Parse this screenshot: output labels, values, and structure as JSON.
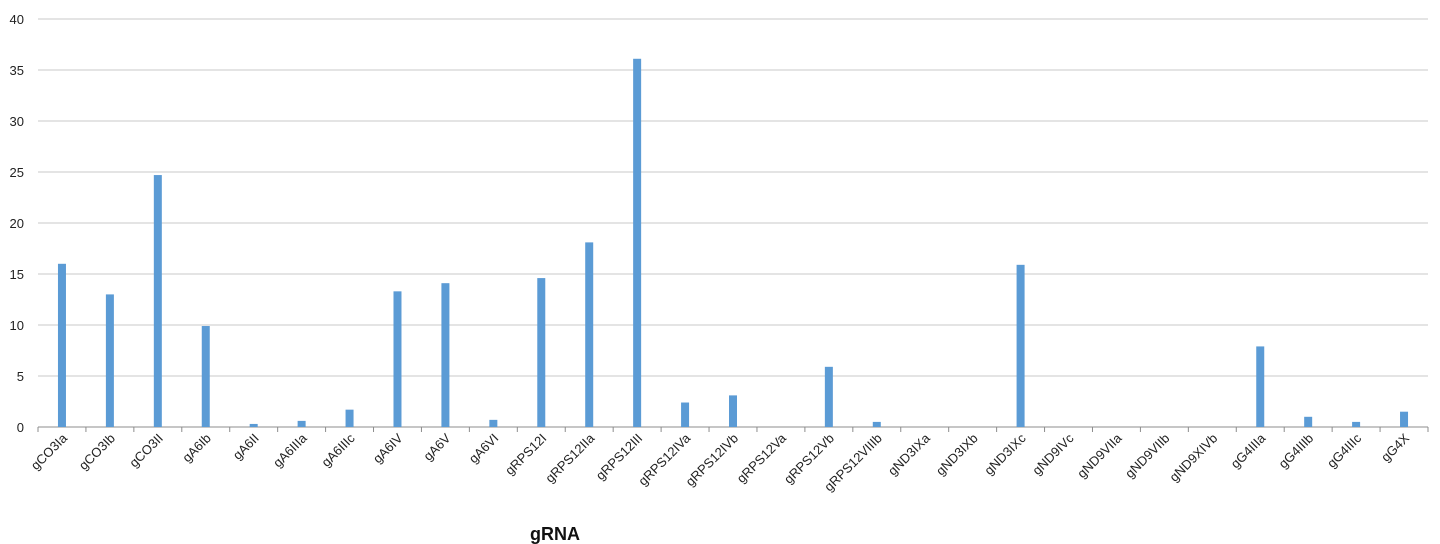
{
  "chart_data": {
    "type": "bar",
    "title": "",
    "xlabel": "gRNA",
    "ylabel": "",
    "ylim": [
      0,
      40
    ],
    "yticks": [
      0,
      5,
      10,
      15,
      20,
      25,
      30,
      35,
      40
    ],
    "grid": true,
    "legend": "none",
    "bar_color": "#5b9bd5",
    "categories": [
      "gCO3Ia",
      "gCO3Ib",
      "gCO3II",
      "gA6Ib",
      "gA6II",
      "gA6IIIa",
      "gA6IIIc",
      "gA6IV",
      "gA6V",
      "gA6VI",
      "gRPS12I",
      "gRPS12IIa",
      "gRPS12III",
      "gRPS12IVa",
      "gRPS12IVb",
      "gRPS12Va",
      "gRPS12Vb",
      "gRPS12VIIIb",
      "gND3IXa",
      "gND3IXb",
      "gND3IXc",
      "gND9IVc",
      "gND9VIIa",
      "gND9VIIb",
      "gND9XIVb",
      "gG4IIIa",
      "gG4IIIb",
      "gG4IIIc",
      "gG4X"
    ],
    "values": [
      16.0,
      13.0,
      24.7,
      9.9,
      0.3,
      0.6,
      1.7,
      13.3,
      14.1,
      0.7,
      14.6,
      18.1,
      36.1,
      2.4,
      3.1,
      0,
      5.9,
      0.5,
      0,
      0,
      15.9,
      0,
      0,
      0,
      0,
      7.9,
      1.0,
      0.5,
      1.5
    ]
  }
}
